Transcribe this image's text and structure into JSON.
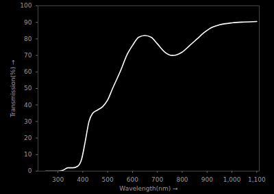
{
  "chart_data": {
    "type": "line",
    "x_label": "Wavelength(nm)",
    "y_label": "Transmission(%)",
    "x": [
      250,
      300,
      320,
      340,
      360,
      380,
      395,
      410,
      425,
      440,
      460,
      480,
      500,
      520,
      550,
      580,
      600,
      625,
      650,
      675,
      700,
      730,
      760,
      780,
      800,
      830,
      860,
      890,
      920,
      950,
      1000,
      1050,
      1100
    ],
    "values": [
      0,
      0,
      0.5,
      2,
      2,
      3,
      7,
      18,
      30,
      35,
      37,
      39,
      43,
      50,
      60,
      71,
      76,
      81,
      82,
      81,
      77,
      72,
      70,
      70.5,
      72,
      76,
      80,
      84,
      87,
      88.5,
      89.7,
      90.2,
      90.5
    ],
    "color": "#ffffff",
    "xlim": [
      220,
      1110
    ],
    "ylim": [
      0,
      100
    ],
    "xticks": [
      300,
      400,
      500,
      600,
      700,
      800,
      900,
      1000,
      1100
    ],
    "yticks": [
      0,
      10,
      20,
      30,
      40,
      50,
      60,
      70,
      80,
      90,
      100
    ],
    "grid": false
  }
}
